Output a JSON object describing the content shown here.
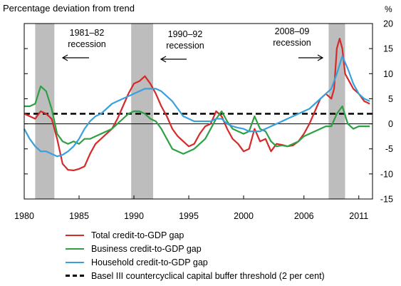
{
  "chart_data": {
    "type": "line",
    "ylabel": "Percentage deviation from trend",
    "yunit": "%",
    "xlim": [
      1980,
      2011.75
    ],
    "ylim": [
      -15,
      20
    ],
    "yticks": [
      -15,
      -10,
      -5,
      0,
      5,
      10,
      15,
      20
    ],
    "xticks": [
      {
        "label": "1980",
        "value": 1980
      },
      {
        "label": "1985",
        "value": 1985
      },
      {
        "label": "1990",
        "value": 1990
      },
      {
        "label": "1995",
        "value": 1995
      },
      {
        "label": "2000",
        "value": 2000
      },
      {
        "label": "2006",
        "value": 2005.5
      },
      {
        "label": "2011",
        "value": 2010.5
      }
    ],
    "recessions": [
      {
        "start": 1981.0,
        "end": 1982.75,
        "label": [
          "1981–82",
          "recession"
        ],
        "arrow": "left"
      },
      {
        "start": 1989.75,
        "end": 1991.75,
        "label": [
          "1990–92",
          "recession"
        ],
        "arrow": "left"
      },
      {
        "start": 2007.75,
        "end": 2009.25,
        "label": [
          "2008–09",
          "recession"
        ],
        "arrow": "right"
      }
    ],
    "threshold": {
      "name": "Basel III countercyclical capital buffer threshold (2 per cent)",
      "value": 2,
      "color": "#000000"
    },
    "series": [
      {
        "name": "Total credit-to-GDP gap",
        "color": "#d42a2a",
        "x": [
          1980,
          1980.5,
          1981,
          1981.5,
          1982,
          1982.5,
          1983,
          1983.5,
          1984,
          1984.5,
          1985,
          1985.5,
          1986,
          1986.5,
          1987,
          1987.5,
          1988,
          1988.5,
          1989,
          1989.5,
          1990,
          1990.5,
          1991,
          1991.5,
          1992,
          1992.5,
          1993,
          1993.5,
          1994,
          1994.5,
          1995,
          1995.5,
          1996,
          1996.5,
          1997,
          1997.5,
          1998,
          1998.5,
          1999,
          1999.5,
          2000,
          2000.5,
          2001,
          2001.5,
          2002,
          2002.5,
          2003,
          2003.5,
          2004,
          2004.5,
          2005,
          2005.5,
          2006,
          2006.5,
          2007,
          2007.5,
          2008,
          2008.25,
          2008.5,
          2008.75,
          2009,
          2009.25,
          2009.5,
          2010,
          2010.5,
          2011,
          2011.5
        ],
        "y": [
          2,
          1.5,
          1,
          2.5,
          2,
          1,
          -3,
          -8,
          -9.2,
          -9.3,
          -9,
          -8.5,
          -6,
          -4,
          -3,
          -2,
          -1,
          1,
          3.5,
          6,
          8,
          8.5,
          9.5,
          8,
          6,
          3.5,
          1.5,
          -1,
          -2.5,
          -3.5,
          -4.5,
          -4,
          -2,
          -0.5,
          0,
          2.5,
          1.5,
          -1,
          -3,
          -4,
          -5.5,
          -5,
          -1,
          -3.5,
          -3,
          -5.5,
          -4,
          -4.2,
          -4.5,
          -4.3,
          -3.5,
          -2,
          0,
          2.5,
          5,
          6,
          5,
          7,
          15,
          17,
          15,
          10,
          9,
          7,
          6,
          4.5,
          4
        ]
      },
      {
        "name": "Business credit-to-GDP gap",
        "color": "#2ea043",
        "x": [
          1980,
          1980.5,
          1981,
          1981.5,
          1982,
          1982.5,
          1983,
          1983.5,
          1984,
          1984.5,
          1985,
          1985.5,
          1986,
          1986.5,
          1987,
          1987.5,
          1988,
          1988.5,
          1989,
          1989.5,
          1990,
          1990.5,
          1991,
          1991.5,
          1992,
          1992.5,
          1993,
          1993.5,
          1994,
          1994.5,
          1995,
          1995.5,
          1996,
          1996.5,
          1997,
          1997.5,
          1998,
          1998.5,
          1999,
          1999.5,
          2000,
          2000.5,
          2001,
          2001.5,
          2002,
          2002.5,
          2003,
          2003.5,
          2004,
          2004.5,
          2005,
          2005.5,
          2006,
          2006.5,
          2007,
          2007.5,
          2008,
          2008.5,
          2009,
          2009.5,
          2010,
          2010.5,
          2011,
          2011.5
        ],
        "y": [
          3.5,
          3.5,
          4,
          7.5,
          6.5,
          3,
          -2,
          -3.5,
          -4,
          -3.5,
          -4,
          -3,
          -3,
          -2.5,
          -2,
          -1.5,
          -1,
          0,
          1,
          2,
          2.5,
          2.5,
          2,
          1,
          0.5,
          -1,
          -3,
          -5,
          -5.5,
          -6,
          -5.5,
          -5,
          -4,
          -3,
          -1,
          1,
          2.5,
          0.5,
          -1,
          -1.5,
          -2,
          -1.5,
          1.5,
          -1,
          -1.5,
          -3.5,
          -4.5,
          -4.3,
          -4.5,
          -4,
          -3.5,
          -2.5,
          -2,
          -1.5,
          -1,
          -0.5,
          -0.5,
          2,
          3.5,
          0,
          -1,
          -0.5,
          -0.5,
          -0.5
        ]
      },
      {
        "name": "Household credit-to-GDP gap",
        "color": "#3aa0dc",
        "x": [
          1980,
          1980.5,
          1981,
          1981.5,
          1982,
          1982.5,
          1983,
          1983.5,
          1984,
          1984.5,
          1985,
          1985.5,
          1986,
          1986.5,
          1987,
          1987.5,
          1988,
          1988.5,
          1989,
          1989.5,
          1990,
          1990.5,
          1991,
          1991.5,
          1992,
          1992.5,
          1993,
          1993.5,
          1994,
          1994.5,
          1995,
          1995.5,
          1996,
          1996.5,
          1997,
          1997.5,
          1998,
          1998.5,
          1999,
          1999.5,
          2000,
          2000.5,
          2001,
          2001.5,
          2002,
          2002.5,
          2003,
          2003.5,
          2004,
          2004.5,
          2005,
          2005.5,
          2006,
          2006.5,
          2007,
          2007.5,
          2008,
          2008.5,
          2009,
          2009.5,
          2010,
          2010.5,
          2011,
          2011.5
        ],
        "y": [
          -1,
          -3,
          -4.5,
          -5.5,
          -5.5,
          -6,
          -6.5,
          -6.2,
          -5.5,
          -4.5,
          -3,
          -1,
          0.5,
          1.5,
          2,
          3,
          4,
          4.5,
          5,
          5.5,
          6,
          6.5,
          7,
          7,
          7,
          6.5,
          5.5,
          4.5,
          3,
          1.5,
          1,
          0.5,
          0.5,
          0.5,
          0.5,
          1,
          1,
          0,
          -0.5,
          -0.8,
          -1,
          -1.5,
          -1.5,
          -1.5,
          -1,
          -0.5,
          0,
          0.5,
          1,
          1.5,
          2,
          2.5,
          3,
          4,
          5,
          6,
          7,
          10,
          13.5,
          11,
          8,
          6,
          5,
          4.5
        ]
      }
    ]
  },
  "text": {
    "ylabel": "Percentage deviation from trend",
    "yunit": "%"
  },
  "legend": [
    {
      "name": "Total credit-to-GDP gap",
      "color": "#d42a2a",
      "style": "solid"
    },
    {
      "name": "Business credit-to-GDP gap",
      "color": "#2ea043",
      "style": "solid"
    },
    {
      "name": "Household credit-to-GDP gap",
      "color": "#3aa0dc",
      "style": "solid"
    },
    {
      "name": "Basel III countercyclical capital buffer threshold (2 per cent)",
      "color": "#000000",
      "style": "dashed"
    }
  ]
}
